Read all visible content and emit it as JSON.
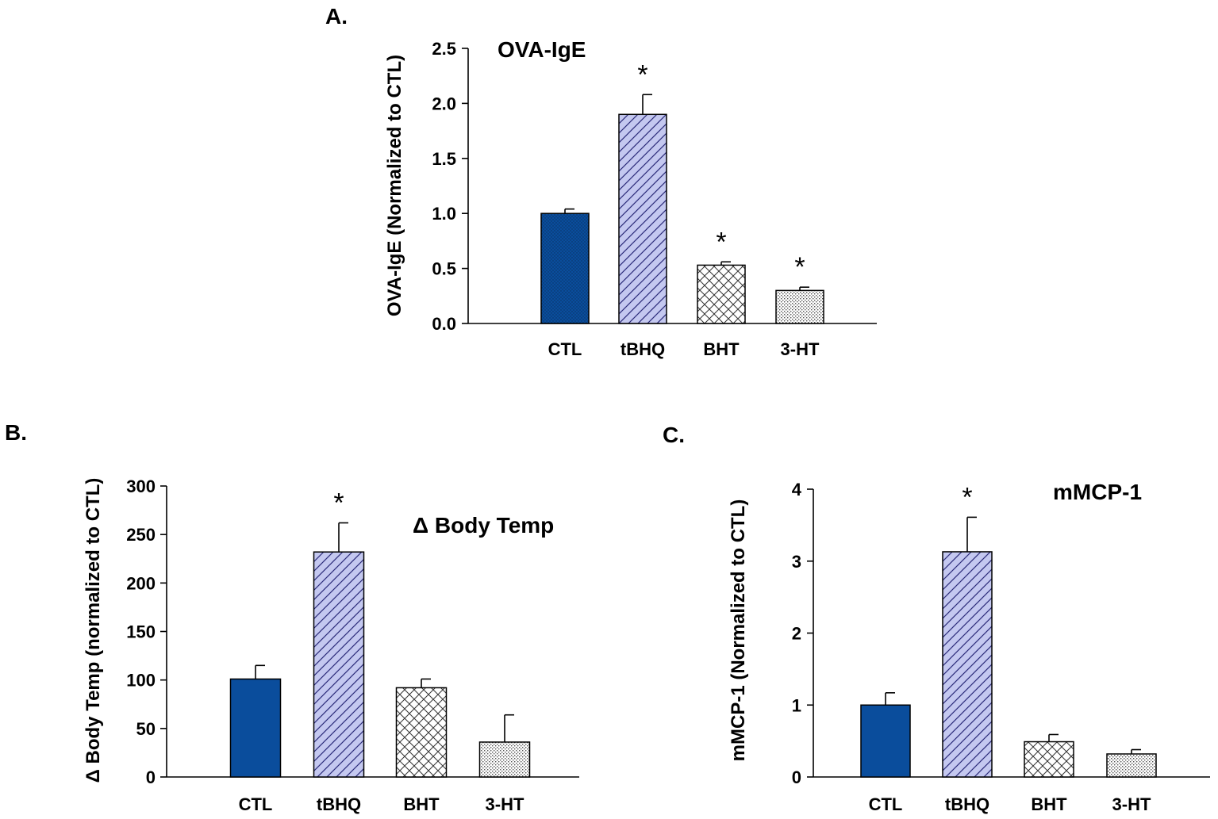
{
  "chart_data": [
    {
      "panel": "A.",
      "type": "bar",
      "title": "OVA-IgE",
      "categories": [
        "CTL",
        "tBHQ",
        "BHT",
        "3-HT"
      ],
      "values": [
        1.0,
        1.9,
        0.53,
        0.3
      ],
      "errors": [
        0.04,
        0.18,
        0.03,
        0.03
      ],
      "significance": [
        "",
        "*",
        "*",
        "*"
      ],
      "ylabel": "OVA-IgE (Normalized to CTL)",
      "ylim": [
        0,
        2.5
      ],
      "yticks": [
        "0.0",
        "0.5",
        "1.0",
        "1.5",
        "2.0",
        "2.5"
      ],
      "ytick_values": [
        0,
        0.5,
        1.0,
        1.5,
        2.0,
        2.5
      ],
      "legend": "none"
    },
    {
      "panel": "B.",
      "type": "bar",
      "title": "Δ Body Temp",
      "categories": [
        "CTL",
        "tBHQ",
        "BHT",
        "3-HT"
      ],
      "values": [
        101,
        232,
        92,
        36
      ],
      "errors": [
        14,
        30,
        9,
        28
      ],
      "significance": [
        "",
        "*",
        "",
        ""
      ],
      "ylabel": "Δ Body Temp (normalized to CTL)",
      "ylim": [
        0,
        300
      ],
      "yticks": [
        "0",
        "50",
        "100",
        "150",
        "200",
        "250",
        "300"
      ],
      "ytick_values": [
        0,
        50,
        100,
        150,
        200,
        250,
        300
      ],
      "legend": "none"
    },
    {
      "panel": "C.",
      "type": "bar",
      "title": "mMCP-1",
      "categories": [
        "CTL",
        "tBHQ",
        "BHT",
        "3-HT"
      ],
      "values": [
        1.0,
        3.13,
        0.49,
        0.32
      ],
      "errors": [
        0.17,
        0.48,
        0.1,
        0.06
      ],
      "significance": [
        "",
        "*",
        "",
        ""
      ],
      "ylabel": "mMCP-1 (Normalized to CTL)",
      "ylim": [
        0,
        4
      ],
      "yticks": [
        "0",
        "1",
        "2",
        "3",
        "4"
      ],
      "ytick_values": [
        0,
        1,
        2,
        3,
        4
      ],
      "legend": "none"
    }
  ],
  "styles": {
    "colors": {
      "ctl_fill": "#0a4d9c",
      "tbhq_fill": "#c4c8f0",
      "tbhq_stroke": "#2b2b7a",
      "bht_fill": "#ffffff",
      "ht3_fill": "#ffffff",
      "axis": "#000000"
    },
    "patterns": [
      "ctl-dots",
      "diagonal-hatch",
      "cross-hatch",
      "fine-dots"
    ]
  }
}
